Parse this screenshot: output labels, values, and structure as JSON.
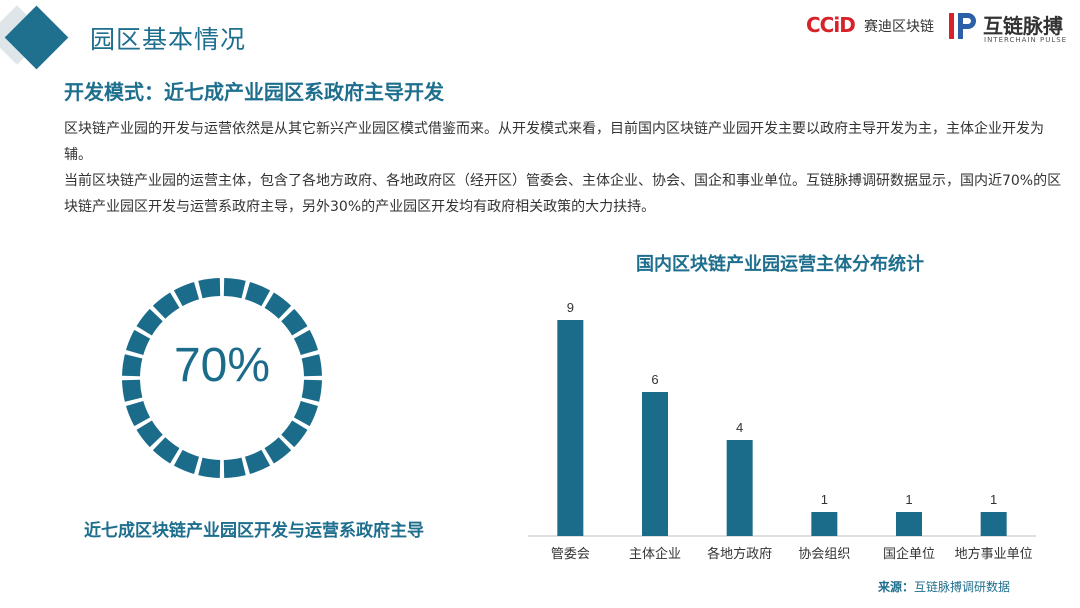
{
  "header": {
    "title": "园区基本情况",
    "logos": {
      "ccid_text": "CCiD",
      "ccid_cn": "赛迪区块链",
      "pulse_cn": "互链脉搏",
      "pulse_en": "INTERCHAIN PULSE"
    }
  },
  "section": {
    "heading": "开发模式：近七成产业园区系政府主导开发",
    "paragraphs": [
      "区块链产业园的开发与运营依然是从其它新兴产业园区模式借鉴而来。从开发模式来看，目前国内区块链产业园开发主要以政府主导开发为主，主体企业开发为辅。",
      "当前区块链产业园的运营主体，包含了各地方政府、各地政府区（经开区）管委会、主体企业、协会、国企和事业单位。互链脉搏调研数据显示，国内近70%的区块链产业园区开发与运营系政府主导，另外30%的产业园区开发均有政府相关政策的大力扶持。"
    ]
  },
  "donut": {
    "value_label": "70%",
    "fraction": 0.7,
    "caption": "近七成区块链产业园区开发与运营系政府主导"
  },
  "chart_data": {
    "type": "bar",
    "title": "国内区块链产业园运营主体分布统计",
    "categories": [
      "管委会",
      "主体企业",
      "各地方政府",
      "协会组织",
      "国企单位",
      "地方事业单位"
    ],
    "values": [
      9,
      6,
      4,
      1,
      1,
      1
    ],
    "ylim": [
      0,
      9
    ],
    "xlabel": "",
    "ylabel": "",
    "grid": false,
    "legend": "none",
    "bar_color": "#1b6b8a"
  },
  "source": {
    "label": "来源：",
    "text": "互链脉搏调研数据"
  },
  "colors": {
    "primary": "#1e6e8e",
    "bar": "#1b6b8a",
    "ccid_red": "#d7222a"
  }
}
